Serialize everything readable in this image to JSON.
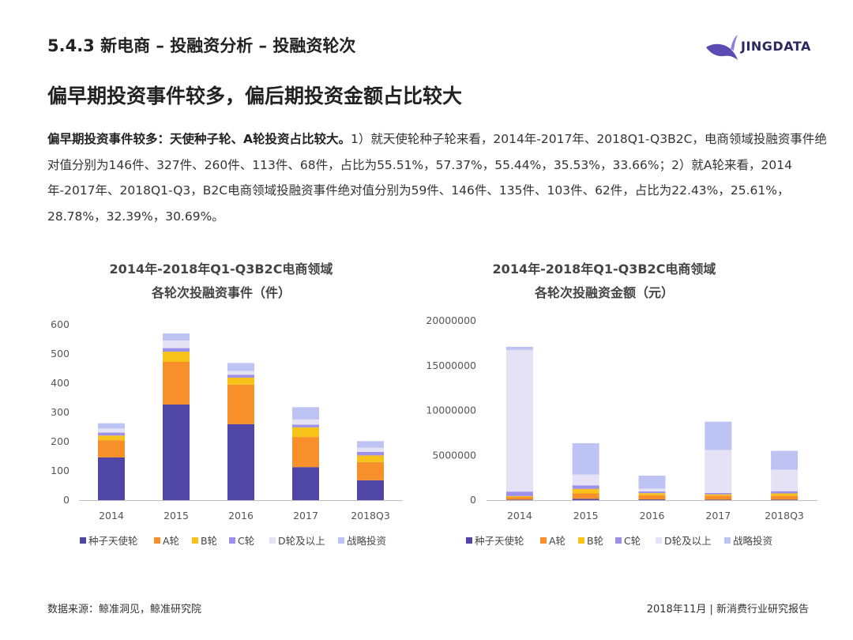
{
  "header": {
    "section_title": "5.4.3 新电商 – 投融资分析 – 投融资轮次",
    "brand": "JINGDATA",
    "headline": "偏早期投资事件较多，偏后期投资金额占比较大"
  },
  "summary": {
    "lead": "偏早期投资事件较多：天使种子轮、A轮投资占比较大。",
    "body": "1）就天使轮种子轮来看，2014年-2017年、2018Q1-Q3B2C，电商领域投融资事件绝对值分别为146件、327件、260件、113件、68件，占比为55.51%，57.37%，55.44%，35.53%，33.66%；2）就A轮来看，2014年-2017年、2018Q1-Q3，B2C电商领域投融资事件绝对值分别为59件、146件、135件、103件、62件，占比为22.43%，25.61%，28.78%，32.39%，30.69%。"
  },
  "colors": {
    "种子天使轮": "#5046a5",
    "A轮": "#f7902a",
    "B轮": "#f7c21a",
    "C轮": "#9d90e8",
    "D轮及以上": "#e4e2f4",
    "战略投资": "#bdc3f3"
  },
  "chart_data": [
    {
      "type": "bar",
      "stacked": true,
      "title_line1": "2014年-2018年Q1-Q3B2C电商领域",
      "title_line2": "各轮次投融资事件（件）",
      "categories": [
        "2014",
        "2015",
        "2016",
        "2017",
        "2018Q3"
      ],
      "ylim": [
        0,
        600
      ],
      "yticks": [
        0,
        100,
        200,
        300,
        400,
        500,
        600
      ],
      "ytick_labels": [
        "0",
        "100",
        "200",
        "300",
        "400",
        "500",
        "600"
      ],
      "legend_position": "bottom",
      "series": [
        {
          "name": "种子天使轮",
          "values": [
            146,
            327,
            260,
            113,
            68
          ]
        },
        {
          "name": "A轮",
          "values": [
            59,
            146,
            135,
            103,
            62
          ]
        },
        {
          "name": "B轮",
          "values": [
            16,
            35,
            24,
            33,
            23
          ]
        },
        {
          "name": "C轮",
          "values": [
            10,
            12,
            10,
            9,
            12
          ]
        },
        {
          "name": "D轮及以上",
          "values": [
            14,
            26,
            13,
            18,
            14
          ]
        },
        {
          "name": "战略投资",
          "values": [
            18,
            24,
            27,
            42,
            23
          ]
        }
      ]
    },
    {
      "type": "bar",
      "stacked": true,
      "title_line1": "2014年-2018年Q1-Q3B2C电商领域",
      "title_line2": "各轮次投融资金额（元）",
      "categories": [
        "2014",
        "2015",
        "2016",
        "2017",
        "2018Q3"
      ],
      "ylim": [
        0,
        20000000
      ],
      "yticks": [
        0,
        5000000,
        10000000,
        15000000,
        20000000
      ],
      "ytick_labels": [
        "0",
        "5000000",
        "10000000",
        "15000000",
        "20000000"
      ],
      "legend_position": "bottom",
      "series": [
        {
          "name": "种子天使轮",
          "values": [
            50000,
            150000,
            80000,
            50000,
            50000
          ]
        },
        {
          "name": "A轮",
          "values": [
            300000,
            600000,
            450000,
            450000,
            450000
          ]
        },
        {
          "name": "B轮",
          "values": [
            100000,
            500000,
            250000,
            150000,
            250000
          ]
        },
        {
          "name": "C轮",
          "values": [
            500000,
            400000,
            200000,
            150000,
            250000
          ]
        },
        {
          "name": "D轮及以上",
          "values": [
            15800000,
            1200000,
            300000,
            4800000,
            2400000
          ]
        },
        {
          "name": "战略投资",
          "values": [
            350000,
            3500000,
            1450000,
            3150000,
            2100000
          ]
        }
      ]
    }
  ],
  "footer": {
    "source": "数据来源：鲸准洞见，鲸准研究院",
    "right": "2018年11月 | 新消费行业研究报告"
  }
}
